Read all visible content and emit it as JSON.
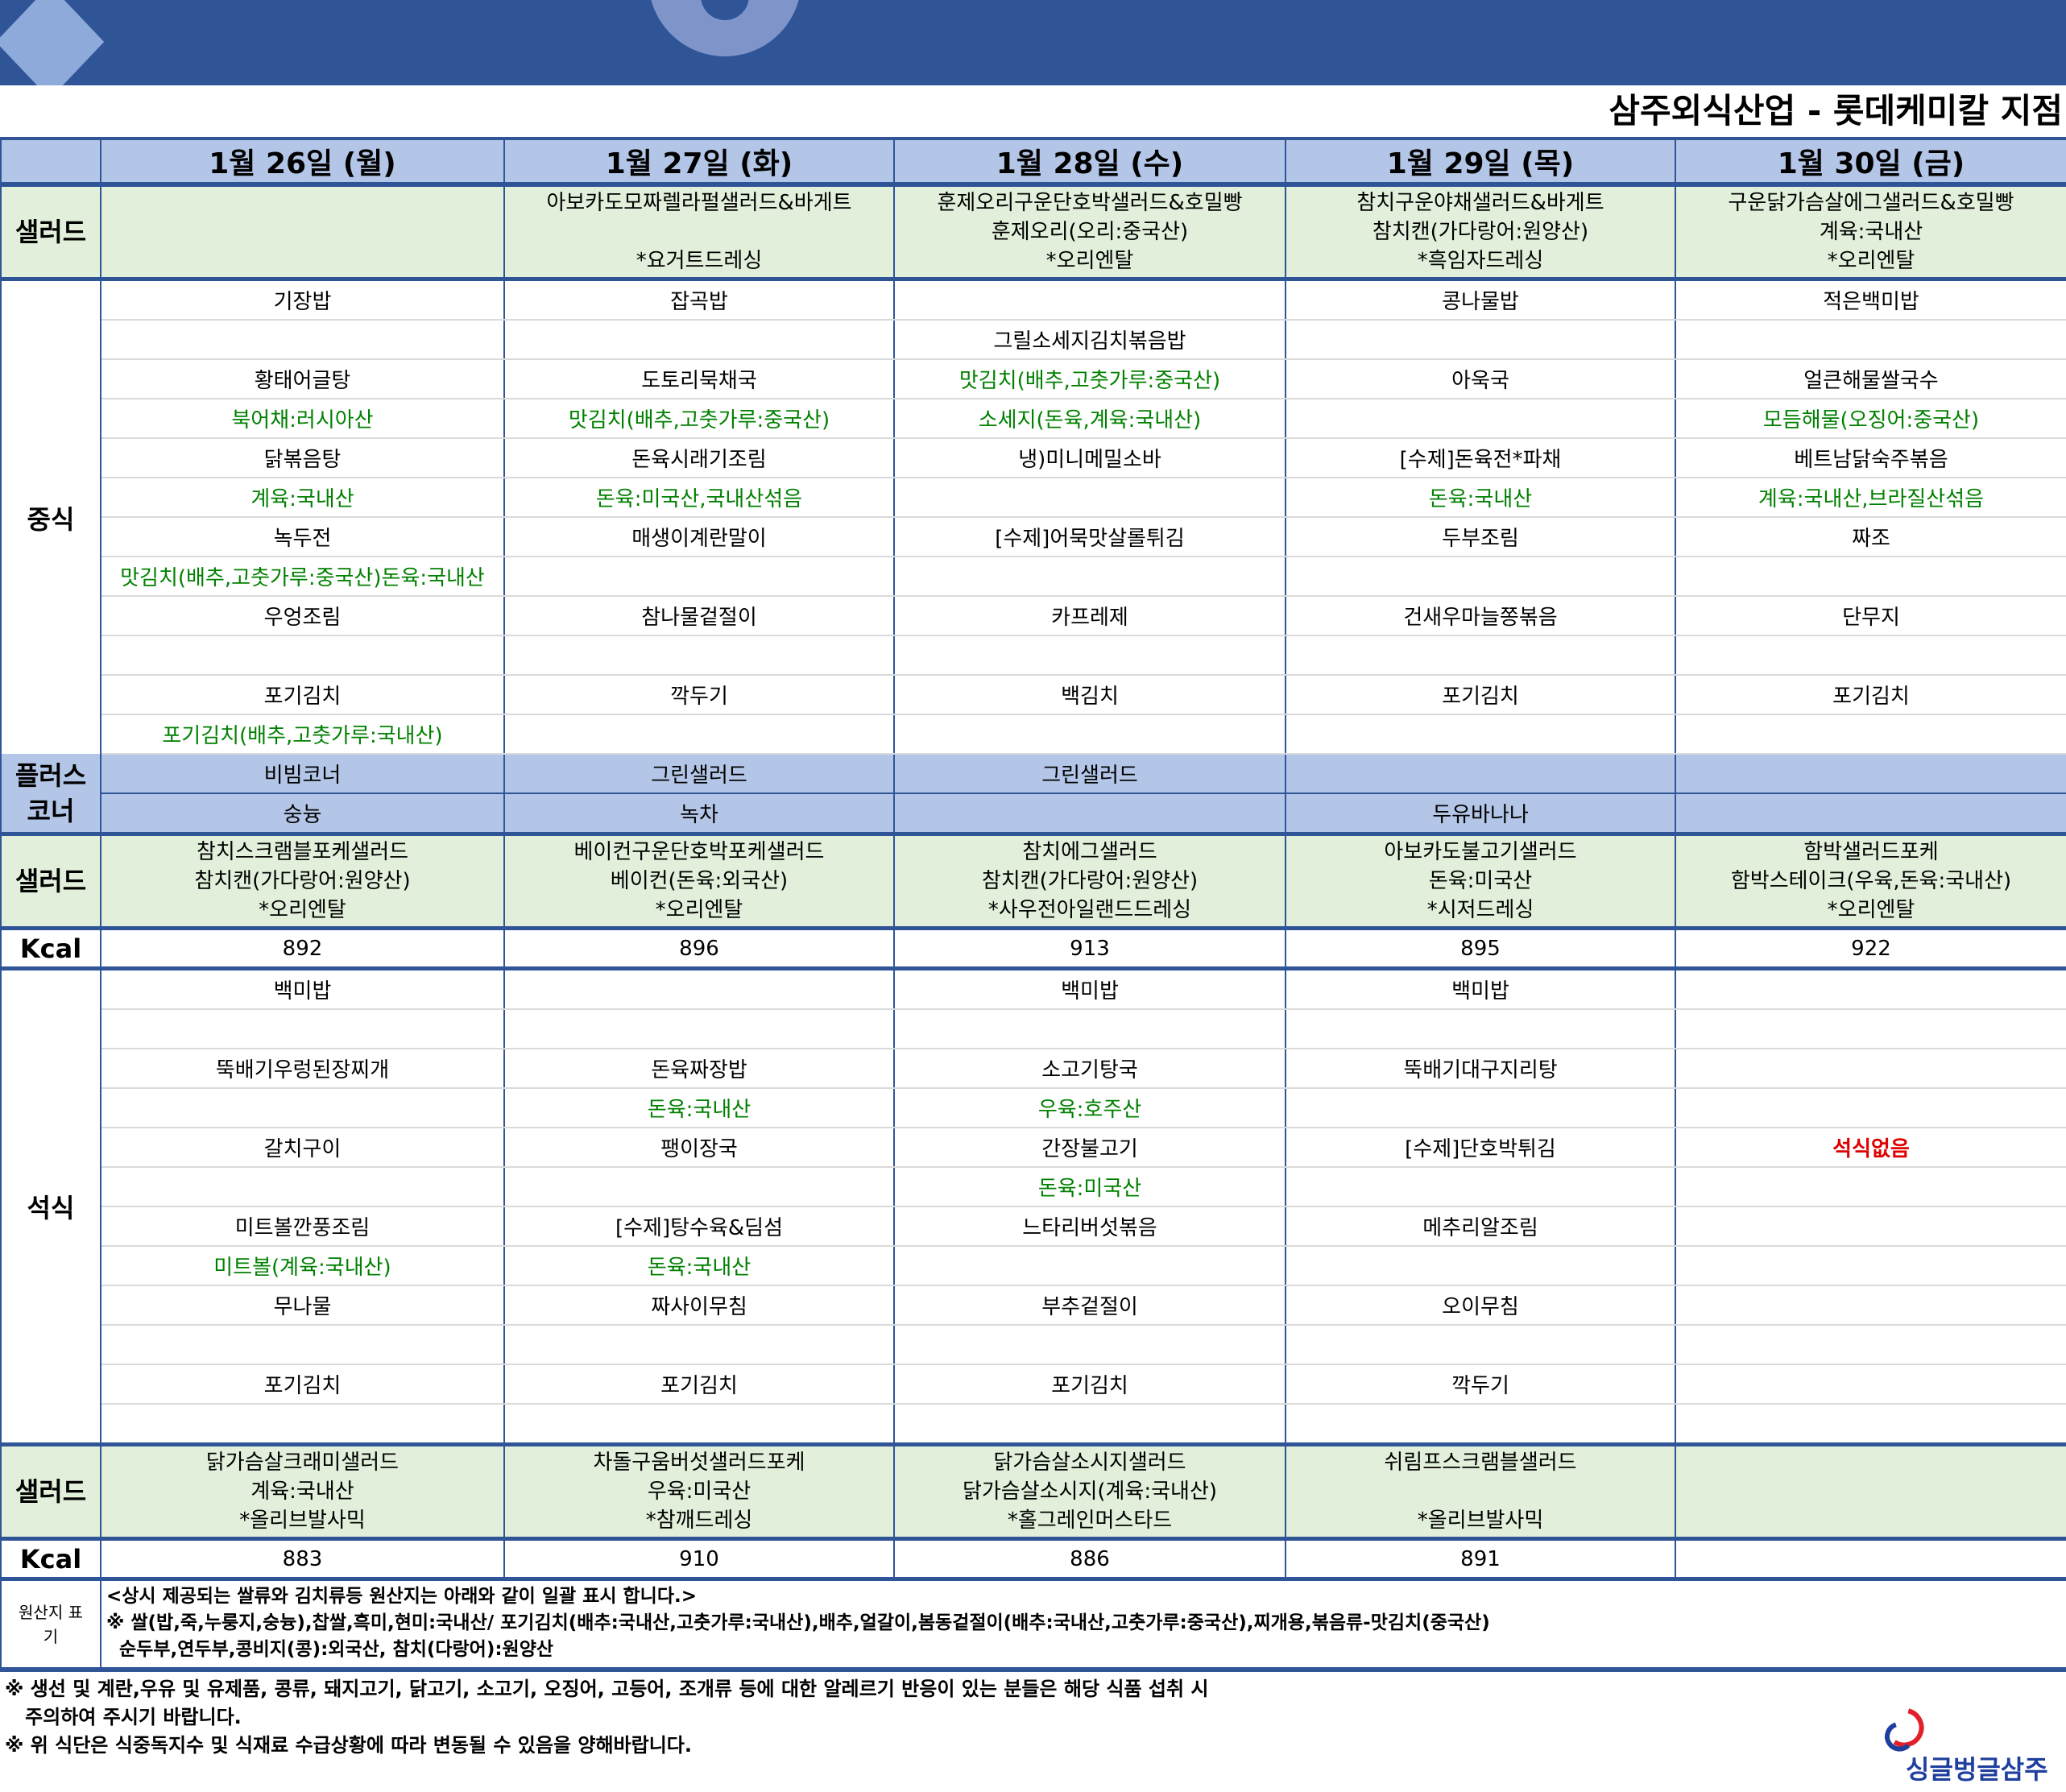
{
  "title": "삼주외식산업 - 롯데케미칼 지점",
  "colors": {
    "header_band": "#2f5597",
    "date_row": "#b4c6e7",
    "salad_row": "#e2efda",
    "origin_text": "#008000",
    "no_dinner": "#e00000"
  },
  "days": [
    "1월 26일 (월)",
    "1월 27일 (화)",
    "1월 28일 (수)",
    "1월 29일 (목)",
    "1월 30일 (금)"
  ],
  "labels": {
    "salad": "샐러드",
    "lunch": "중식",
    "plus_corner": "플러스 코너",
    "kcal": "Kcal",
    "dinner": "석식",
    "origin": "원산지 표기"
  },
  "lunch_salad": [
    [
      "",
      "",
      ""
    ],
    [
      "아보카도모짜렐라펄샐러드&바게트",
      "",
      "*요거트드레싱"
    ],
    [
      "훈제오리구운단호박샐러드&호밀빵",
      "훈제오리(오리:중국산)",
      "*오리엔탈"
    ],
    [
      "참치구운야채샐러드&바게트",
      "참치캔(가다랑어:원양산)",
      "*흑임자드레싱"
    ],
    [
      "구운닭가슴살에그샐러드&호밀빵",
      "계육:국내산",
      "*오리엔탈"
    ]
  ],
  "lunch": [
    [
      {
        "text": "기장밥"
      },
      {
        "text": ""
      },
      {
        "text": "황태어글탕"
      },
      {
        "text": "북어채:러시아산",
        "type": "origin"
      },
      {
        "text": "닭볶음탕"
      },
      {
        "text": "계육:국내산",
        "type": "origin"
      },
      {
        "text": "녹두전"
      },
      {
        "text": "맛김치(배추,고춧가루:중국산)돈육:국내산",
        "type": "origin"
      },
      {
        "text": "우엉조림"
      },
      {
        "text": ""
      },
      {
        "text": "포기김치"
      },
      {
        "text": "포기김치(배추,고춧가루:국내산)",
        "type": "origin"
      }
    ],
    [
      {
        "text": "잡곡밥"
      },
      {
        "text": ""
      },
      {
        "text": "도토리묵채국"
      },
      {
        "text": "맛김치(배추,고춧가루:중국산)",
        "type": "origin"
      },
      {
        "text": "돈육시래기조림"
      },
      {
        "text": "돈육:미국산,국내산섞음",
        "type": "origin"
      },
      {
        "text": "매생이계란말이"
      },
      {
        "text": ""
      },
      {
        "text": "참나물겉절이"
      },
      {
        "text": ""
      },
      {
        "text": "깍두기"
      },
      {
        "text": ""
      }
    ],
    [
      {
        "text": ""
      },
      {
        "text": "그릴소세지김치볶음밥"
      },
      {
        "text": "맛김치(배추,고춧가루:중국산)",
        "type": "origin"
      },
      {
        "text": "소세지(돈육,계육:국내산)",
        "type": "origin"
      },
      {
        "text": "냉)미니메밀소바"
      },
      {
        "text": ""
      },
      {
        "text": "[수제]어묵맛살롤튀김"
      },
      {
        "text": ""
      },
      {
        "text": "카프레제"
      },
      {
        "text": ""
      },
      {
        "text": "백김치"
      },
      {
        "text": ""
      }
    ],
    [
      {
        "text": "콩나물밥"
      },
      {
        "text": ""
      },
      {
        "text": "아욱국"
      },
      {
        "text": ""
      },
      {
        "text": "[수제]돈육전*파채"
      },
      {
        "text": "돈육:국내산",
        "type": "origin"
      },
      {
        "text": "두부조림"
      },
      {
        "text": ""
      },
      {
        "text": "건새우마늘쫑볶음"
      },
      {
        "text": ""
      },
      {
        "text": "포기김치"
      },
      {
        "text": ""
      }
    ],
    [
      {
        "text": "적은백미밥"
      },
      {
        "text": ""
      },
      {
        "text": "얼큰해물쌀국수"
      },
      {
        "text": "모듬해물(오징어:중국산)",
        "type": "origin"
      },
      {
        "text": "베트남닭숙주볶음"
      },
      {
        "text": "계육:국내산,브라질산섞음",
        "type": "origin"
      },
      {
        "text": "짜조"
      },
      {
        "text": ""
      },
      {
        "text": "단무지"
      },
      {
        "text": ""
      },
      {
        "text": "포기김치"
      },
      {
        "text": ""
      }
    ]
  ],
  "plus_corner": [
    [
      "비빔코너",
      "숭늉"
    ],
    [
      "그린샐러드",
      "녹차"
    ],
    [
      "그린샐러드",
      ""
    ],
    [
      "",
      "두유바나나"
    ],
    [
      "",
      ""
    ]
  ],
  "plus_salad": [
    [
      "참치스크램블포케샐러드",
      "참치캔(가다랑어:원양산)",
      "*오리엔탈"
    ],
    [
      "베이컨구운단호박포케샐러드",
      "베이컨(돈육:외국산)",
      "*오리엔탈"
    ],
    [
      "참치에그샐러드",
      "참치캔(가다랑어:원양산)",
      "*사우전아일랜드드레싱"
    ],
    [
      "아보카도불고기샐러드",
      "돈육:미국산",
      "*시저드레싱"
    ],
    [
      "함박샐러드포케",
      "함박스테이크(우육,돈육:국내산)",
      "*오리엔탈"
    ]
  ],
  "lunch_kcal": [
    "892",
    "896",
    "913",
    "895",
    "922"
  ],
  "dinner": [
    [
      {
        "text": "백미밥"
      },
      {
        "text": ""
      },
      {
        "text": "뚝배기우렁된장찌개"
      },
      {
        "text": ""
      },
      {
        "text": "갈치구이"
      },
      {
        "text": ""
      },
      {
        "text": "미트볼깐풍조림"
      },
      {
        "text": "미트볼(계육:국내산)",
        "type": "origin"
      },
      {
        "text": "무나물"
      },
      {
        "text": ""
      },
      {
        "text": "포기김치"
      },
      {
        "text": ""
      }
    ],
    [
      {
        "text": ""
      },
      {
        "text": ""
      },
      {
        "text": "돈육짜장밥"
      },
      {
        "text": "돈육:국내산",
        "type": "origin"
      },
      {
        "text": "팽이장국"
      },
      {
        "text": ""
      },
      {
        "text": "[수제]탕수육&딤섬"
      },
      {
        "text": "돈육:국내산",
        "type": "origin"
      },
      {
        "text": "짜사이무침"
      },
      {
        "text": ""
      },
      {
        "text": "포기김치"
      },
      {
        "text": ""
      }
    ],
    [
      {
        "text": "백미밥"
      },
      {
        "text": ""
      },
      {
        "text": "소고기탕국"
      },
      {
        "text": "우육:호주산",
        "type": "origin"
      },
      {
        "text": "간장불고기"
      },
      {
        "text": "돈육:미국산",
        "type": "origin"
      },
      {
        "text": "느타리버섯볶음"
      },
      {
        "text": ""
      },
      {
        "text": "부추겉절이"
      },
      {
        "text": ""
      },
      {
        "text": "포기김치"
      },
      {
        "text": ""
      }
    ],
    [
      {
        "text": "백미밥"
      },
      {
        "text": ""
      },
      {
        "text": "뚝배기대구지리탕"
      },
      {
        "text": ""
      },
      {
        "text": "[수제]단호박튀김"
      },
      {
        "text": ""
      },
      {
        "text": "메추리알조림"
      },
      {
        "text": ""
      },
      {
        "text": "오이무침"
      },
      {
        "text": ""
      },
      {
        "text": "깍두기"
      },
      {
        "text": ""
      }
    ],
    [
      {
        "text": ""
      },
      {
        "text": ""
      },
      {
        "text": ""
      },
      {
        "text": ""
      },
      {
        "text": "석식없음",
        "type": "alert"
      },
      {
        "text": ""
      },
      {
        "text": ""
      },
      {
        "text": ""
      },
      {
        "text": ""
      },
      {
        "text": ""
      },
      {
        "text": ""
      },
      {
        "text": ""
      }
    ]
  ],
  "dinner_salad": [
    [
      "닭가슴살크래미샐러드",
      "계육:국내산",
      "*올리브발사믹"
    ],
    [
      "차돌구움버섯샐러드포케",
      "우육:미국산",
      "*참깨드레싱"
    ],
    [
      "닭가슴살소시지샐러드",
      "닭가슴살소시지(계육:국내산)",
      "*홀그레인머스타드"
    ],
    [
      "쉬림프스크램블샐러드",
      "",
      "*올리브발사믹"
    ],
    [
      "",
      "",
      ""
    ]
  ],
  "dinner_kcal": [
    "883",
    "910",
    "886",
    "891",
    ""
  ],
  "origin_notice": [
    "<상시 제공되는 쌀류와 김치류등 원산지는 아래와 같이 일괄 표시 합니다.>",
    "※ 쌀(밥,죽,누룽지,숭늉),찹쌀,흑미,현미:국내산/ 포기김치(배추:국내산,고춧가루:국내산),배추,얼갈이,봄동겉절이(배추:국내산,고춧가루:중국산),찌개용,볶음류-맛김치(중국산)",
    "  순두부,연두부,콩비지(콩):외국산, 참치(다랑어):원양산"
  ],
  "footer": [
    "※ 생선 및 계란,우유 및 유제품, 콩류, 돼지고기, 닭고기, 소고기, 오징어, 고등어, 조개류 등에 대한 알레르기 반응이 있는 분들은 해당 식품 섭취 시",
    "   주의하여 주시기 바랍니다.",
    "※ 위 식단은 식중독지수 및 식재료 수급상황에 따라 변동될 수 있음을 양해바랍니다."
  ],
  "logo_text": "싱글벙글삼주"
}
